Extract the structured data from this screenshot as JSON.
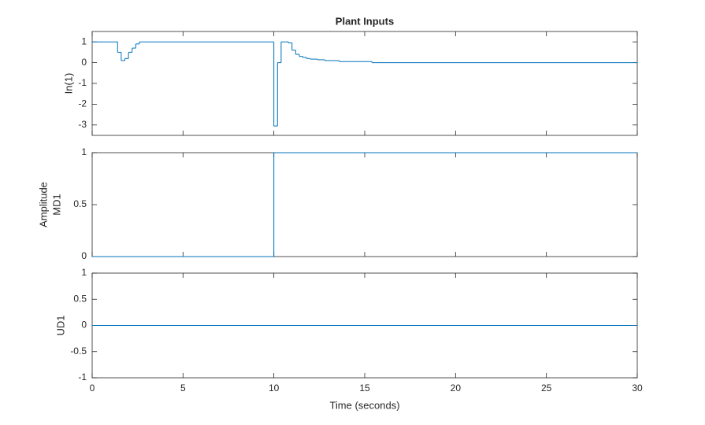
{
  "title": "Plant Inputs",
  "ylabel": "Amplitude",
  "xlabel": "Time (seconds)",
  "chart_data": [
    {
      "type": "stairs",
      "ylabel": "In(1)",
      "color": "#0072bd",
      "x": [
        0,
        1.4,
        1.6,
        1.8,
        2.0,
        2.2,
        2.4,
        2.6,
        10.0,
        10.2,
        10.4,
        10.8,
        11.0,
        11.2,
        11.4,
        11.6,
        11.8,
        12.0,
        12.4,
        12.8,
        13.6,
        15.4,
        30
      ],
      "values": [
        1,
        0.5,
        0.1,
        0.2,
        0.5,
        0.7,
        0.9,
        1,
        -3.05,
        0,
        1,
        0.95,
        0.6,
        0.4,
        0.3,
        0.25,
        0.2,
        0.17,
        0.14,
        0.1,
        0.05,
        0,
        0
      ],
      "xlim": [
        0,
        30
      ],
      "xticks": [
        0,
        5,
        10,
        15,
        20,
        25,
        30
      ],
      "ylim": [
        -3.5,
        1.5
      ],
      "yticks": [
        -3,
        -2,
        -1,
        0,
        1
      ]
    },
    {
      "type": "stairs",
      "ylabel": "MD1",
      "color": "#0072bd",
      "x": [
        0,
        10,
        30
      ],
      "values": [
        0,
        1,
        1
      ],
      "xlim": [
        0,
        30
      ],
      "xticks": [
        0,
        5,
        10,
        15,
        20,
        25,
        30
      ],
      "ylim": [
        0,
        1
      ],
      "yticks": [
        0,
        0.5,
        1
      ]
    },
    {
      "type": "stairs",
      "ylabel": "UD1",
      "color": "#0072bd",
      "x": [
        0,
        30
      ],
      "values": [
        0,
        0
      ],
      "xlim": [
        0,
        30
      ],
      "xticks": [
        0,
        5,
        10,
        15,
        20,
        25,
        30
      ],
      "ylim": [
        -1,
        1
      ],
      "yticks": [
        -1,
        -0.5,
        0,
        0.5,
        1
      ]
    }
  ]
}
